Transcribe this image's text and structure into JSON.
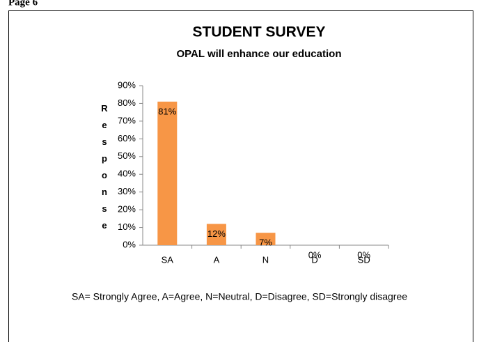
{
  "page_label": "Page 6",
  "chart_data": {
    "type": "bar",
    "title": "STUDENT SURVEY",
    "subtitle": "OPAL will enhance our education",
    "y_label": "Response",
    "categories": [
      "SA",
      "A",
      "N",
      "D",
      "SD"
    ],
    "values": [
      81,
      12,
      7,
      0,
      0
    ],
    "value_labels": [
      "81%",
      "12%",
      "7%",
      "0%",
      "0%"
    ],
    "color": "#f79646",
    "ylim": [
      0,
      90
    ],
    "yticks": [
      {
        "value": 0,
        "label": "0%"
      },
      {
        "value": 10,
        "label": "10%"
      },
      {
        "value": 20,
        "label": "20%"
      },
      {
        "value": 30,
        "label": "30%"
      },
      {
        "value": 40,
        "label": "40%"
      },
      {
        "value": 50,
        "label": "50%"
      },
      {
        "value": 60,
        "label": "60%"
      },
      {
        "value": 70,
        "label": "70%"
      },
      {
        "value": 80,
        "label": "80%"
      },
      {
        "value": 90,
        "label": "90%"
      }
    ],
    "footnote": "SA= Strongly Agree, A=Agree, N=Neutral, D=Disagree, SD=Strongly disagree"
  }
}
